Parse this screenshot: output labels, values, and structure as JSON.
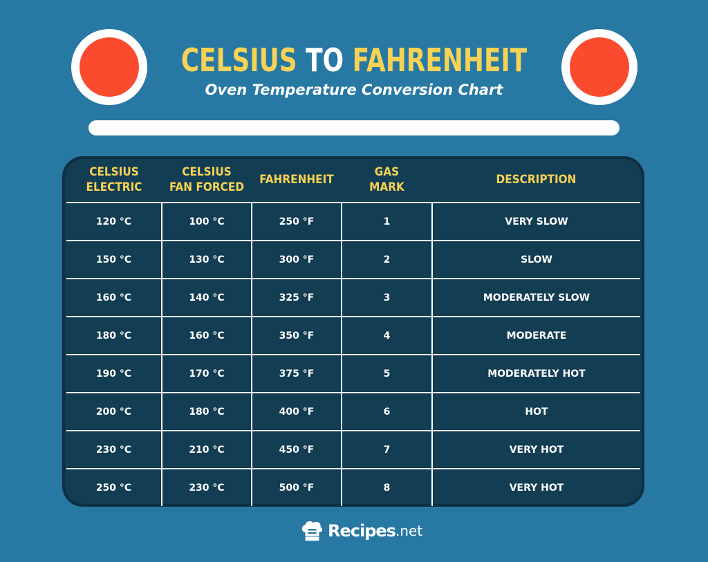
{
  "header": {
    "title_part1": "CELSIUS",
    "title_part2": "TO",
    "title_part3": "FAHRENHEIT",
    "subtitle": "Oven Temperature Conversion Chart"
  },
  "colors": {
    "background": "#2778a3",
    "panel": "#123d52",
    "accent_yellow": "#f7d254",
    "burner_red": "#fb4b2e"
  },
  "chart_data": {
    "type": "table",
    "title": "CELSIUS TO FAHRENHEIT",
    "subtitle": "Oven Temperature Conversion Chart",
    "columns": [
      [
        "CELSIUS",
        "ELECTRIC"
      ],
      [
        "CELSIUS",
        "FAN FORCED"
      ],
      [
        "FAHRENHEIT"
      ],
      [
        "GAS",
        "MARK"
      ],
      [
        "DESCRIPTION"
      ]
    ],
    "rows": [
      [
        "120 °C",
        "100 °C",
        "250  °F",
        "1",
        "VERY SLOW"
      ],
      [
        "150 °C",
        "130 °C",
        "300 °F",
        "2",
        "SLOW"
      ],
      [
        "160 °C",
        "140 °C",
        "325 °F",
        "3",
        "MODERATELY SLOW"
      ],
      [
        "180 °C",
        "160 °C",
        "350 °F",
        "4",
        "MODERATE"
      ],
      [
        "190 °C",
        "170 °C",
        "375 °F",
        "5",
        "MODERATELY HOT"
      ],
      [
        "200 °C",
        "180 °C",
        "400 °F",
        "6",
        "HOT"
      ],
      [
        "230 °C",
        "210 °C",
        "450 °F",
        "7",
        "VERY HOT"
      ],
      [
        "250 °C",
        "230 °C",
        "500 °F",
        "8",
        "VERY HOT"
      ]
    ]
  },
  "footer": {
    "logo_icon": "chef-hat-icon",
    "logo_word": "Recipes",
    "logo_suffix": ".net"
  }
}
